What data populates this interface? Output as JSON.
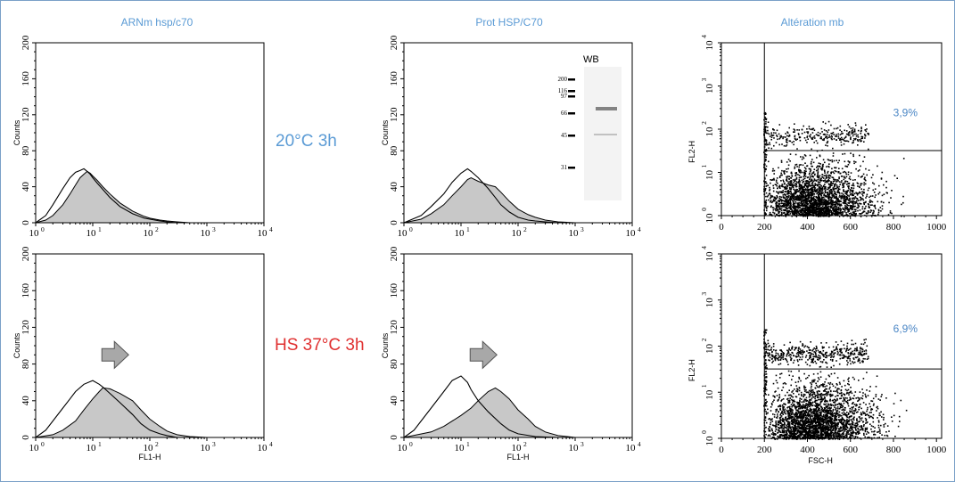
{
  "column_titles": [
    "ARNm hsp/c70",
    "Prot HSP/C70",
    "Altération mb"
  ],
  "conditions": [
    {
      "label": "20°C 3h",
      "color": "#5b9bd5"
    },
    {
      "label": "HS 37°C 3h",
      "color": "#e03030"
    }
  ],
  "colors": {
    "fill": "#c8c8c8",
    "line": "#000000",
    "arrow": "#a8a8a8",
    "title": "#5b9bd5",
    "frame": "#7aa0c8"
  },
  "chart_data": [
    {
      "id": "mrna-20",
      "type": "area",
      "title": "ARNm hsp/c70",
      "xlabel": "",
      "ylabel": "Counts",
      "x_scale": "log",
      "xlim": [
        1,
        10000
      ],
      "ylim": [
        0,
        200
      ],
      "x_ticks": [
        "10",
        "10",
        "10",
        "10",
        "10"
      ],
      "x_exp": [
        "0",
        "1",
        "2",
        "3",
        "4"
      ],
      "y_ticks": [
        "0",
        "40",
        "80",
        "120",
        "160",
        "200"
      ],
      "series": [
        {
          "role": "filled",
          "x": [
            1,
            1.5,
            2,
            3,
            4,
            5,
            6,
            7,
            8,
            9,
            10,
            12,
            15,
            20,
            30,
            50,
            80,
            100,
            150,
            200,
            300,
            500
          ],
          "y": [
            0,
            3,
            8,
            20,
            32,
            42,
            50,
            54,
            57,
            55,
            52,
            47,
            40,
            32,
            22,
            13,
            7,
            5,
            3,
            2,
            1,
            0
          ]
        },
        {
          "role": "outline",
          "x": [
            1,
            1.5,
            2,
            3,
            4,
            5,
            6,
            7,
            8,
            9,
            10,
            12,
            15,
            20,
            30,
            50,
            80,
            100,
            150,
            200,
            300,
            500
          ],
          "y": [
            0,
            8,
            20,
            38,
            50,
            56,
            58,
            60,
            57,
            54,
            50,
            44,
            37,
            28,
            18,
            10,
            5,
            4,
            2,
            1,
            0,
            0
          ]
        }
      ]
    },
    {
      "id": "prot-20",
      "type": "area",
      "title": "Prot HSP/C70",
      "xlabel": "",
      "ylabel": "Counts",
      "x_scale": "log",
      "xlim": [
        1,
        10000
      ],
      "ylim": [
        0,
        200
      ],
      "x_ticks": [
        "10",
        "10",
        "10",
        "10",
        "10"
      ],
      "x_exp": [
        "0",
        "1",
        "2",
        "3",
        "4"
      ],
      "y_ticks": [
        "0",
        "40",
        "80",
        "120",
        "160",
        "200"
      ],
      "series": [
        {
          "role": "filled",
          "x": [
            1,
            2,
            3,
            5,
            7,
            10,
            13,
            15,
            20,
            30,
            40,
            50,
            70,
            100,
            150,
            200,
            300,
            500,
            1000
          ],
          "y": [
            0,
            4,
            10,
            20,
            30,
            40,
            48,
            50,
            46,
            42,
            40,
            34,
            24,
            15,
            9,
            6,
            3,
            1,
            0
          ]
        },
        {
          "role": "outline",
          "x": [
            1,
            2,
            3,
            5,
            7,
            10,
            13,
            15,
            20,
            30,
            40,
            50,
            70,
            100,
            150,
            200,
            300,
            500
          ],
          "y": [
            0,
            8,
            18,
            32,
            45,
            55,
            60,
            57,
            50,
            38,
            28,
            20,
            12,
            6,
            3,
            2,
            1,
            0
          ]
        }
      ]
    },
    {
      "id": "mb-20",
      "type": "scatter",
      "title": "Altération mb",
      "xlabel": "",
      "ylabel": "FL2-H",
      "xlim": [
        0,
        1024
      ],
      "y_scale": "log",
      "ylim": [
        1,
        10000
      ],
      "x_ticks": [
        "0",
        "200",
        "400",
        "600",
        "800",
        "1000"
      ],
      "y_ticks": [
        "10",
        "10",
        "10",
        "10",
        "10"
      ],
      "y_exp": [
        "0",
        "1",
        "2",
        "3",
        "4"
      ],
      "gate": {
        "x": 200,
        "y": 32
      },
      "annotation": "3,9%",
      "point_counts": {
        "main": 2500,
        "upper": 280
      }
    },
    {
      "id": "mrna-37",
      "type": "area",
      "title": "",
      "xlabel": "FL1-H",
      "ylabel": "Counts",
      "x_scale": "log",
      "xlim": [
        1,
        10000
      ],
      "ylim": [
        0,
        200
      ],
      "x_ticks": [
        "10",
        "10",
        "10",
        "10",
        "10"
      ],
      "x_exp": [
        "0",
        "1",
        "2",
        "3",
        "4"
      ],
      "y_ticks": [
        "0",
        "40",
        "80",
        "120",
        "160",
        "200"
      ],
      "arrow": true,
      "series": [
        {
          "role": "filled",
          "x": [
            1,
            2,
            3,
            5,
            7,
            10,
            13,
            15,
            20,
            30,
            50,
            70,
            100,
            150,
            200,
            300,
            500,
            1000
          ],
          "y": [
            0,
            3,
            8,
            18,
            30,
            42,
            50,
            54,
            53,
            48,
            40,
            30,
            20,
            12,
            7,
            3,
            1,
            0
          ]
        },
        {
          "role": "outline",
          "x": [
            1,
            1.5,
            2,
            3,
            4,
            5,
            7,
            10,
            13,
            15,
            20,
            30,
            50,
            70,
            100,
            150,
            200,
            300
          ],
          "y": [
            0,
            8,
            18,
            32,
            42,
            50,
            58,
            62,
            58,
            55,
            48,
            38,
            25,
            15,
            8,
            4,
            2,
            0
          ]
        }
      ]
    },
    {
      "id": "prot-37",
      "type": "area",
      "title": "",
      "xlabel": "FL1-H",
      "ylabel": "Counts",
      "x_scale": "log",
      "xlim": [
        1,
        10000
      ],
      "ylim": [
        0,
        200
      ],
      "x_ticks": [
        "10",
        "10",
        "10",
        "10",
        "10"
      ],
      "x_exp": [
        "0",
        "1",
        "2",
        "3",
        "4"
      ],
      "y_ticks": [
        "0",
        "40",
        "80",
        "120",
        "160",
        "200"
      ],
      "arrow": true,
      "series": [
        {
          "role": "filled",
          "x": [
            1,
            3,
            5,
            10,
            15,
            20,
            30,
            40,
            50,
            70,
            100,
            150,
            200,
            300,
            500,
            1000
          ],
          "y": [
            0,
            6,
            12,
            24,
            32,
            40,
            50,
            54,
            50,
            42,
            30,
            20,
            12,
            6,
            2,
            0
          ]
        },
        {
          "role": "outline",
          "x": [
            1,
            1.5,
            2,
            3,
            5,
            7,
            10,
            13,
            15,
            20,
            30,
            50,
            70,
            100,
            200,
            500
          ],
          "y": [
            0,
            8,
            18,
            32,
            50,
            62,
            67,
            60,
            52,
            40,
            28,
            15,
            8,
            4,
            1,
            0
          ]
        }
      ]
    },
    {
      "id": "mb-37",
      "type": "scatter",
      "title": "",
      "xlabel": "FSC-H",
      "ylabel": "FL2-H",
      "xlim": [
        0,
        1024
      ],
      "y_scale": "log",
      "ylim": [
        1,
        10000
      ],
      "x_ticks": [
        "0",
        "200",
        "400",
        "600",
        "800",
        "1000"
      ],
      "y_ticks": [
        "10",
        "10",
        "10",
        "10",
        "10"
      ],
      "y_exp": [
        "0",
        "1",
        "2",
        "3",
        "4"
      ],
      "gate": {
        "x": 200,
        "y": 32
      },
      "annotation": "6,9%",
      "point_counts": {
        "main": 2700,
        "upper": 420
      }
    }
  ],
  "western_blot": {
    "title": "WB",
    "markers": [
      "200",
      "116",
      "97",
      "66",
      "45",
      "31"
    ]
  }
}
